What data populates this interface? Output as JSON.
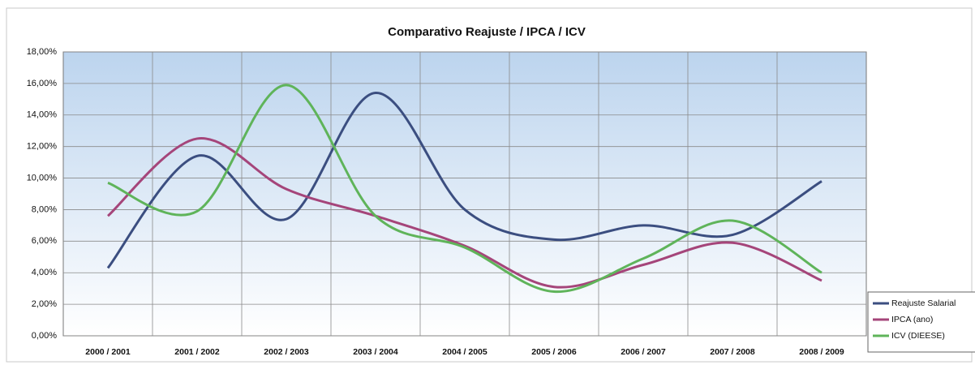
{
  "chart_data": {
    "type": "line",
    "title": "Comparativo Reajuste / IPCA /  ICV",
    "categories": [
      "2000 / 2001",
      "2001 / 2002",
      "2002 / 2003",
      "2003 / 2004",
      "2004 / 2005",
      "2005 / 2006",
      "2006 / 2007",
      "2007 / 2008",
      "2008 / 2009"
    ],
    "series": [
      {
        "name": "Reajuste Salarial",
        "color": "#3b4e80",
        "values": [
          4.3,
          11.4,
          7.4,
          15.4,
          8.0,
          6.1,
          7.0,
          6.4,
          9.8
        ]
      },
      {
        "name": "IPCA (ano)",
        "color": "#a5457a",
        "values": [
          7.6,
          12.5,
          9.3,
          7.6,
          5.7,
          3.1,
          4.5,
          5.9,
          3.5
        ]
      },
      {
        "name": "ICV (DIEESE)",
        "color": "#5fb45a",
        "values": [
          9.7,
          7.9,
          15.9,
          7.6,
          5.6,
          2.8,
          4.9,
          7.3,
          4.0
        ]
      }
    ],
    "ylim": [
      0,
      18
    ],
    "yticks": [
      {
        "value": 0,
        "label": "0,00%"
      },
      {
        "value": 2,
        "label": "2,00%"
      },
      {
        "value": 4,
        "label": "4,00%"
      },
      {
        "value": 6,
        "label": "6,00%"
      },
      {
        "value": 8,
        "label": "8,00%"
      },
      {
        "value": 10,
        "label": "10,00%"
      },
      {
        "value": 12,
        "label": "12,00%"
      },
      {
        "value": 14,
        "label": "14,00%"
      },
      {
        "value": 16,
        "label": "16,00%"
      },
      {
        "value": 18,
        "label": "18,00%"
      }
    ],
    "grid": true,
    "legend": "bottom-right"
  }
}
